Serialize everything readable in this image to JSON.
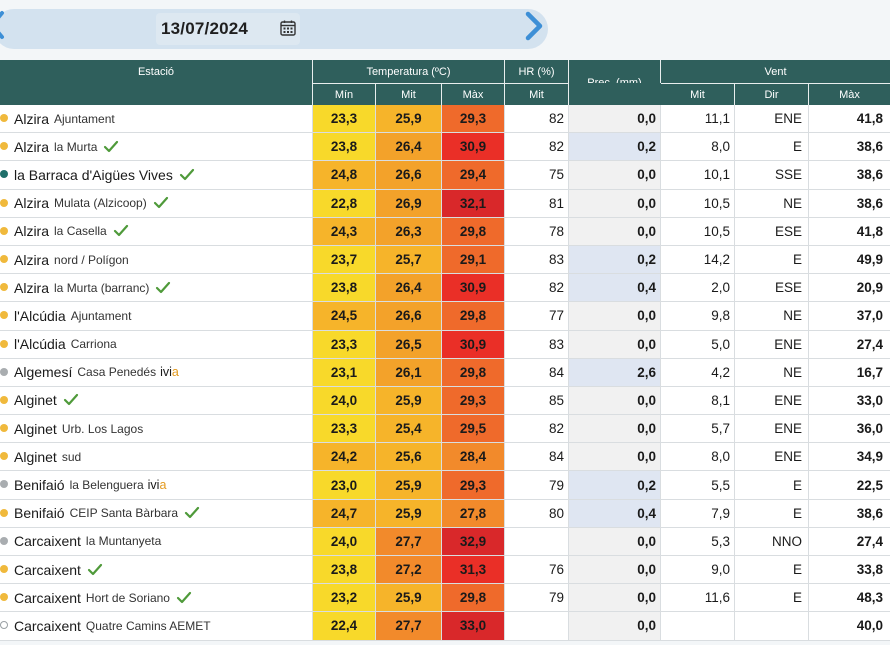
{
  "date": "13/07/2024",
  "nav": {
    "prev_icon": "chevron-left-icon",
    "next_icon": "chevron-right-icon",
    "calendar_icon": "calendar-icon"
  },
  "colors": {
    "header_bg": "#2f5f5c",
    "accent_arrow": "#3d8fd6",
    "prec_highlight": "#dfe6f2",
    "prec_zero": "#f1f1f1"
  },
  "headers": {
    "estacio": "Estació",
    "temperatura": "Temperatura (ºC)",
    "hr": "HR (%)",
    "prec": "Prec. (mm)",
    "vent": "Vent",
    "t_min": "Mín",
    "t_mit": "Mit",
    "t_max": "Màx",
    "hr_mit": "Mit",
    "v_mit": "Mit",
    "v_dir": "Dir",
    "v_max": "Màx"
  },
  "rows": [
    {
      "name": "Alzira",
      "sub": "Ajuntament",
      "check": false,
      "ivia": false,
      "dot": "#f0b93c",
      "tmin": "23,3",
      "tmit": "25,9",
      "tmax": "29,3",
      "hr": "82",
      "prec": "0,0",
      "vmit": "11,1",
      "vdir": "ENE",
      "vmax": "41,8",
      "cmin": "#f8d92a",
      "cmit": "#f6b42a",
      "cmax": "#ef6a2b",
      "pbg": "#f1f1f1"
    },
    {
      "name": "Alzira",
      "sub": "la Murta",
      "check": true,
      "ivia": false,
      "dot": "#f0b93c",
      "tmin": "23,8",
      "tmit": "26,4",
      "tmax": "30,9",
      "hr": "82",
      "prec": "0,2",
      "vmit": "8,0",
      "vdir": "E",
      "vmax": "38,6",
      "cmin": "#f8d92a",
      "cmit": "#f3a22a",
      "cmax": "#ea2f27",
      "pbg": "#dfe6f2"
    },
    {
      "name": "la Barraca d'Aigües Vives",
      "sub": "",
      "check": true,
      "ivia": false,
      "dot": "#1f6f6a",
      "tmin": "24,8",
      "tmit": "26,6",
      "tmax": "29,4",
      "hr": "75",
      "prec": "0,0",
      "vmit": "10,1",
      "vdir": "SSE",
      "vmax": "38,6",
      "cmin": "#f6b42a",
      "cmit": "#f3a22a",
      "cmax": "#ef6a2b",
      "pbg": "#f1f1f1"
    },
    {
      "name": "Alzira",
      "sub": "Mulata (Alzicoop)",
      "check": true,
      "ivia": false,
      "dot": "#f0b93c",
      "tmin": "22,8",
      "tmit": "26,9",
      "tmax": "32,1",
      "hr": "81",
      "prec": "0,0",
      "vmit": "10,5",
      "vdir": "NE",
      "vmax": "38,6",
      "cmin": "#f8d92a",
      "cmit": "#f3a22a",
      "cmax": "#d9282a",
      "pbg": "#f1f1f1"
    },
    {
      "name": "Alzira",
      "sub": "la Casella",
      "check": true,
      "ivia": false,
      "dot": "#f0b93c",
      "tmin": "24,3",
      "tmit": "26,3",
      "tmax": "29,8",
      "hr": "78",
      "prec": "0,0",
      "vmit": "10,5",
      "vdir": "ESE",
      "vmax": "41,8",
      "cmin": "#f6b42a",
      "cmit": "#f3a22a",
      "cmax": "#ef6a2b",
      "pbg": "#f1f1f1"
    },
    {
      "name": "Alzira",
      "sub": "nord / Polígon",
      "check": false,
      "ivia": false,
      "dot": "#f0b93c",
      "tmin": "23,7",
      "tmit": "25,7",
      "tmax": "29,1",
      "hr": "83",
      "prec": "0,2",
      "vmit": "14,2",
      "vdir": "E",
      "vmax": "49,9",
      "cmin": "#f8d92a",
      "cmit": "#f6b42a",
      "cmax": "#ef6a2b",
      "pbg": "#dfe6f2"
    },
    {
      "name": "Alzira",
      "sub": "la Murta (barranc)",
      "check": true,
      "ivia": false,
      "dot": "#f0b93c",
      "tmin": "23,8",
      "tmit": "26,4",
      "tmax": "30,9",
      "hr": "82",
      "prec": "0,4",
      "vmit": "2,0",
      "vdir": "ESE",
      "vmax": "20,9",
      "cmin": "#f8d92a",
      "cmit": "#f3a22a",
      "cmax": "#ea2f27",
      "pbg": "#dfe6f2"
    },
    {
      "name": "l'Alcúdia",
      "sub": "Ajuntament",
      "check": false,
      "ivia": false,
      "dot": "#f0b93c",
      "tmin": "24,5",
      "tmit": "26,6",
      "tmax": "29,8",
      "hr": "77",
      "prec": "0,0",
      "vmit": "9,8",
      "vdir": "NE",
      "vmax": "37,0",
      "cmin": "#f6b42a",
      "cmit": "#f3a22a",
      "cmax": "#ef6a2b",
      "pbg": "#f1f1f1"
    },
    {
      "name": "l'Alcúdia",
      "sub": "Carriona",
      "check": false,
      "ivia": false,
      "dot": "#f0b93c",
      "tmin": "23,3",
      "tmit": "26,5",
      "tmax": "30,9",
      "hr": "83",
      "prec": "0,0",
      "vmit": "5,0",
      "vdir": "ENE",
      "vmax": "27,4",
      "cmin": "#f8d92a",
      "cmit": "#f3a22a",
      "cmax": "#ea2f27",
      "pbg": "#f1f1f1"
    },
    {
      "name": "Algemesí",
      "sub": "Casa Penedés",
      "check": false,
      "ivia": true,
      "dot": "#a9adb0",
      "tmin": "23,1",
      "tmit": "26,1",
      "tmax": "29,8",
      "hr": "84",
      "prec": "2,6",
      "vmit": "4,2",
      "vdir": "NE",
      "vmax": "16,7",
      "cmin": "#f8d92a",
      "cmit": "#f3a22a",
      "cmax": "#ef6a2b",
      "pbg": "#dfe6f2"
    },
    {
      "name": "Alginet",
      "sub": "",
      "check": true,
      "ivia": false,
      "dot": "#f0b93c",
      "tmin": "24,0",
      "tmit": "25,9",
      "tmax": "29,3",
      "hr": "85",
      "prec": "0,0",
      "vmit": "8,1",
      "vdir": "ENE",
      "vmax": "33,0",
      "cmin": "#f8d92a",
      "cmit": "#f6b42a",
      "cmax": "#ef6a2b",
      "pbg": "#f1f1f1"
    },
    {
      "name": "Alginet",
      "sub": "Urb. Los Lagos",
      "check": false,
      "ivia": false,
      "dot": "#f0b93c",
      "tmin": "23,3",
      "tmit": "25,4",
      "tmax": "29,5",
      "hr": "82",
      "prec": "0,0",
      "vmit": "5,7",
      "vdir": "ENE",
      "vmax": "36,0",
      "cmin": "#f8d92a",
      "cmit": "#f6b42a",
      "cmax": "#ef6a2b",
      "pbg": "#f1f1f1"
    },
    {
      "name": "Alginet",
      "sub": "sud",
      "check": false,
      "ivia": false,
      "dot": "#f0b93c",
      "tmin": "24,2",
      "tmit": "25,6",
      "tmax": "28,4",
      "hr": "84",
      "prec": "0,0",
      "vmit": "8,0",
      "vdir": "ENE",
      "vmax": "34,9",
      "cmin": "#f6b42a",
      "cmit": "#f6b42a",
      "cmax": "#f28a2b",
      "pbg": "#f1f1f1"
    },
    {
      "name": "Benifaió",
      "sub": "la Belenguera",
      "check": false,
      "ivia": true,
      "dot": "#a9adb0",
      "tmin": "23,0",
      "tmit": "25,9",
      "tmax": "29,3",
      "hr": "79",
      "prec": "0,2",
      "vmit": "5,5",
      "vdir": "E",
      "vmax": "22,5",
      "cmin": "#f8d92a",
      "cmit": "#f6b42a",
      "cmax": "#ef6a2b",
      "pbg": "#dfe6f2"
    },
    {
      "name": "Benifaió",
      "sub": "CEIP Santa Bàrbara",
      "check": true,
      "ivia": false,
      "dot": "#f0b93c",
      "tmin": "24,7",
      "tmit": "25,9",
      "tmax": "27,8",
      "hr": "80",
      "prec": "0,4",
      "vmit": "7,9",
      "vdir": "E",
      "vmax": "38,6",
      "cmin": "#f6b42a",
      "cmit": "#f6b42a",
      "cmax": "#f28a2b",
      "pbg": "#dfe6f2"
    },
    {
      "name": "Carcaixent",
      "sub": "la Muntanyeta",
      "check": false,
      "ivia": false,
      "dot": "#a9adb0",
      "tmin": "24,0",
      "tmit": "27,7",
      "tmax": "32,9",
      "hr": "",
      "prec": "0,0",
      "vmit": "5,3",
      "vdir": "NNO",
      "vmax": "27,4",
      "cmin": "#f8d92a",
      "cmit": "#f28a2b",
      "cmax": "#d9282a",
      "pbg": "#f1f1f1"
    },
    {
      "name": "Carcaixent",
      "sub": "",
      "check": true,
      "ivia": false,
      "dot": "#f0b93c",
      "tmin": "23,8",
      "tmit": "27,2",
      "tmax": "31,3",
      "hr": "76",
      "prec": "0,0",
      "vmit": "9,0",
      "vdir": "E",
      "vmax": "33,8",
      "cmin": "#f8d92a",
      "cmit": "#f28a2b",
      "cmax": "#ea2f27",
      "pbg": "#f1f1f1"
    },
    {
      "name": "Carcaixent",
      "sub": "Hort de Soriano",
      "check": true,
      "ivia": false,
      "dot": "#f0b93c",
      "tmin": "23,2",
      "tmit": "25,9",
      "tmax": "29,8",
      "hr": "79",
      "prec": "0,0",
      "vmit": "11,6",
      "vdir": "E",
      "vmax": "48,3",
      "cmin": "#f8d92a",
      "cmit": "#f6b42a",
      "cmax": "#ef6a2b",
      "pbg": "#f1f1f1"
    },
    {
      "name": "Carcaixent",
      "sub": "Quatre Camins AEMET",
      "check": false,
      "ivia": false,
      "dot": "empty",
      "tmin": "22,4",
      "tmit": "27,7",
      "tmax": "33,0",
      "hr": "",
      "prec": "0,0",
      "vmit": "",
      "vdir": "",
      "vmax": "40,0",
      "cmin": "#f8d92a",
      "cmit": "#f28a2b",
      "cmax": "#d9282a",
      "pbg": "#f1f1f1"
    }
  ],
  "ivia_label": {
    "main": "ivi",
    "accent": "a"
  }
}
